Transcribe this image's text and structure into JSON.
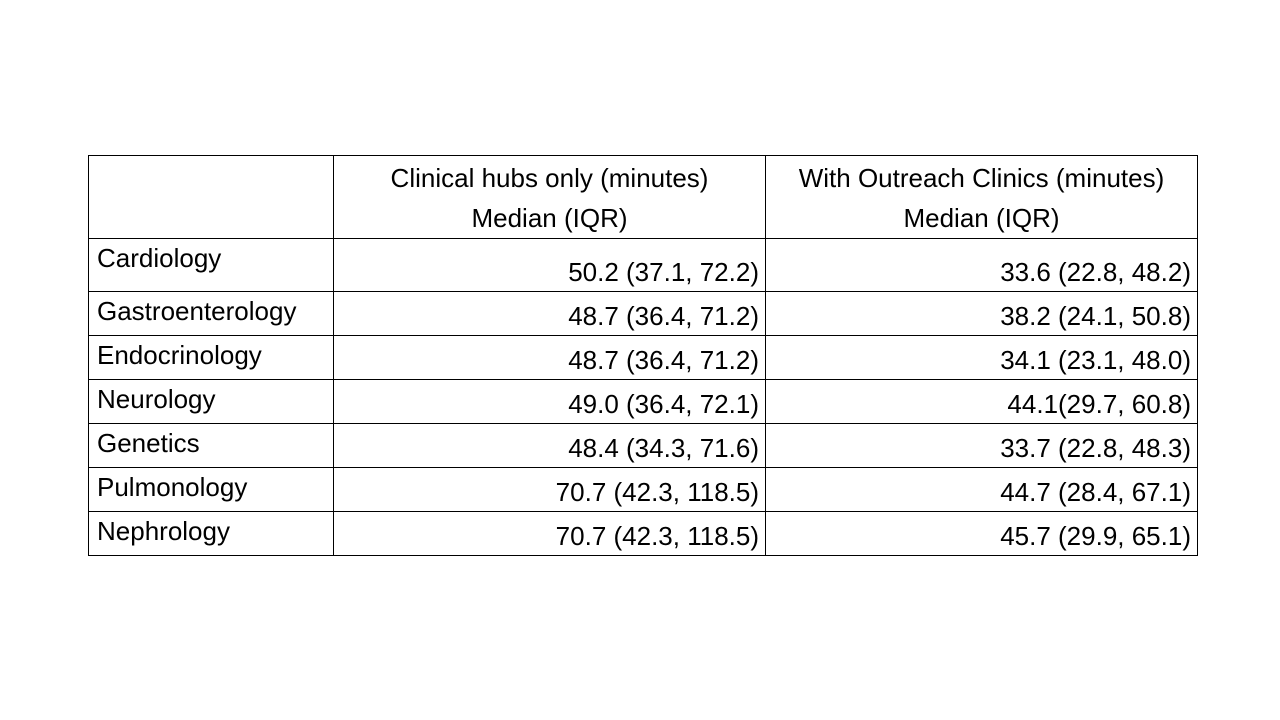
{
  "table": {
    "columns": [
      {
        "line1": "",
        "line2": ""
      },
      {
        "line1": "Clinical hubs only (minutes)",
        "line2": "Median (IQR)"
      },
      {
        "line1": "With Outreach Clinics (minutes)",
        "line2": "Median (IQR)"
      }
    ],
    "rows": [
      {
        "label": "Cardiology",
        "hubs": "50.2 (37.1, 72.2)",
        "outreach": "33.6 (22.8, 48.2)"
      },
      {
        "label": "Gastroenterology",
        "hubs": "48.7 (36.4, 71.2)",
        "outreach": "38.2 (24.1, 50.8)"
      },
      {
        "label": "Endocrinology",
        "hubs": "48.7 (36.4, 71.2)",
        "outreach": "34.1 (23.1, 48.0)"
      },
      {
        "label": "Neurology",
        "hubs": "49.0 (36.4, 72.1)",
        "outreach": "44.1(29.7, 60.8)"
      },
      {
        "label": "Genetics",
        "hubs": "48.4 (34.3, 71.6)",
        "outreach": "33.7 (22.8, 48.3)"
      },
      {
        "label": "Pulmonology",
        "hubs": "70.7 (42.3, 118.5)",
        "outreach": "44.7 (28.4, 67.1)"
      },
      {
        "label": "Nephrology",
        "hubs": "70.7 (42.3, 118.5)",
        "outreach": "45.7 (29.9, 65.1)"
      }
    ]
  }
}
